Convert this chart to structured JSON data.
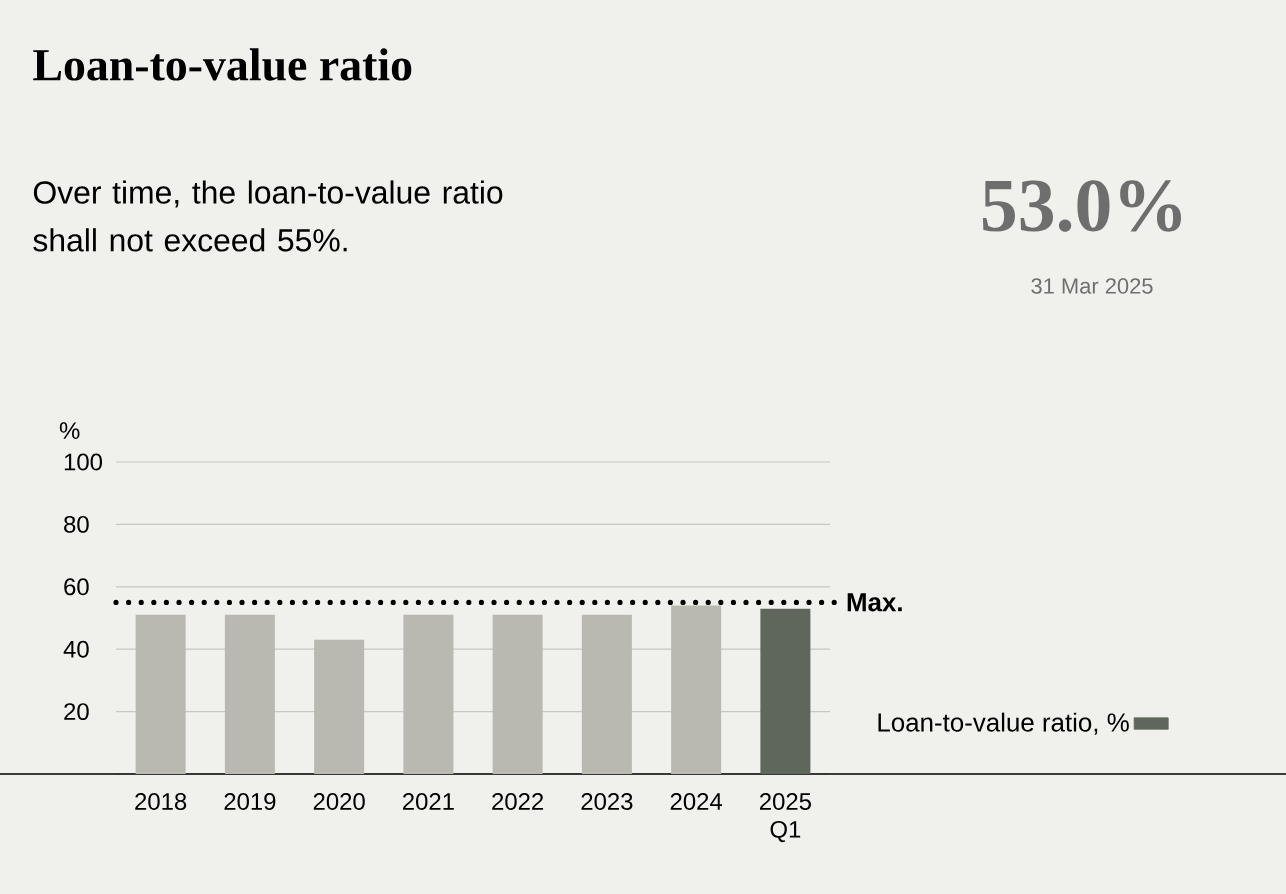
{
  "chart_data": {
    "type": "bar",
    "title": "Loan-to-value ratio",
    "subtitle": "Over time, the loan-to-value ratio shall not exceed 55%.",
    "ylabel": "%",
    "annotations": [
      "53.0%",
      "31 Mar 2025"
    ],
    "categories": [
      "2018",
      "2019",
      "2020",
      "2021",
      "2022",
      "2023",
      "2024",
      "2025 Q1"
    ],
    "series": [
      {
        "name": "Loan-to-value ratio, %",
        "color": "#5f665b",
        "values": [
          51,
          51,
          43,
          51,
          51,
          51,
          54,
          53
        ],
        "colors": [
          "#b9b9b1",
          "#b9b9b1",
          "#b9b9b1",
          "#b9b9b1",
          "#b9b9b1",
          "#b9b9b1",
          "#b9b9b1",
          "#5f665b"
        ]
      }
    ],
    "ylim": [
      0,
      100
    ],
    "yticks": [
      {
        "value": 0,
        "label": null
      },
      20,
      40,
      60,
      80,
      100
    ],
    "grid": "y",
    "legend": "right",
    "ref_lines": [
      {
        "axis": "y",
        "value": 55,
        "label": "Max.",
        "color": "#000000",
        "line_style": "dotted"
      }
    ]
  }
}
